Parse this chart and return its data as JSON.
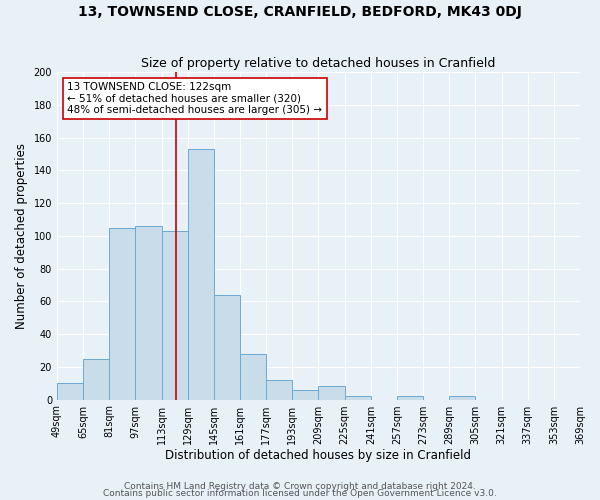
{
  "title": "13, TOWNSEND CLOSE, CRANFIELD, BEDFORD, MK43 0DJ",
  "subtitle": "Size of property relative to detached houses in Cranfield",
  "xlabel": "Distribution of detached houses by size in Cranfield",
  "ylabel": "Number of detached properties",
  "bin_edges": [
    49,
    65,
    81,
    97,
    113,
    129,
    145,
    161,
    177,
    193,
    209,
    225,
    241,
    257,
    273,
    289,
    305,
    321,
    337,
    353,
    369
  ],
  "bar_heights": [
    10,
    25,
    105,
    106,
    103,
    153,
    64,
    28,
    12,
    6,
    8,
    2,
    0,
    2,
    0,
    2,
    0,
    0,
    0,
    0
  ],
  "bar_color": "#c9dcea",
  "bar_edge_color": "#6aaad4",
  "vline_x": 122,
  "vline_color": "#cc0000",
  "annotation_title": "13 TOWNSEND CLOSE: 122sqm",
  "annotation_line1": "← 51% of detached houses are smaller (320)",
  "annotation_line2": "48% of semi-detached houses are larger (305) →",
  "annotation_box_color": "#ffffff",
  "annotation_box_edge": "#cc0000",
  "ylim": [
    0,
    200
  ],
  "yticks": [
    0,
    20,
    40,
    60,
    80,
    100,
    120,
    140,
    160,
    180,
    200
  ],
  "tick_labels": [
    "49sqm",
    "65sqm",
    "81sqm",
    "97sqm",
    "113sqm",
    "129sqm",
    "145sqm",
    "161sqm",
    "177sqm",
    "193sqm",
    "209sqm",
    "225sqm",
    "241sqm",
    "257sqm",
    "273sqm",
    "289sqm",
    "305sqm",
    "321sqm",
    "337sqm",
    "353sqm",
    "369sqm"
  ],
  "footer1": "Contains HM Land Registry data © Crown copyright and database right 2024.",
  "footer2": "Contains public sector information licensed under the Open Government Licence v3.0.",
  "background_color": "#e8f0f8",
  "plot_bg_color": "#e8f0f8",
  "grid_color": "#ffffff",
  "title_fontsize": 10,
  "subtitle_fontsize": 9,
  "axis_label_fontsize": 8.5,
  "tick_fontsize": 7,
  "footer_fontsize": 6.5
}
